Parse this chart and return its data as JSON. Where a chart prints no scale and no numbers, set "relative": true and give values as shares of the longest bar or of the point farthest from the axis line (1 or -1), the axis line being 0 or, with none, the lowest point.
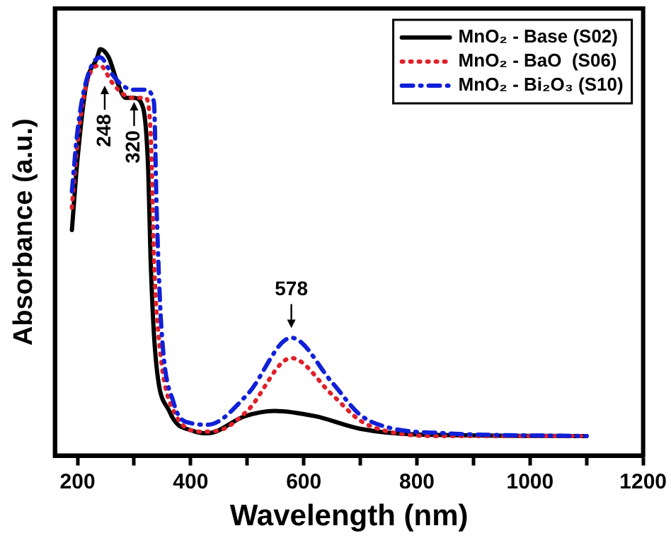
{
  "chart_data": {
    "type": "line",
    "relative": true,
    "xlabel": "Wavelength (nm)",
    "ylabel": "Absorbance (a.u.)",
    "xlim": [
      160,
      1200
    ],
    "xticks": [
      200,
      {
        "value": 300,
        "label": null
      },
      400,
      {
        "value": 500,
        "label": null
      },
      600,
      {
        "value": 700,
        "label": null
      },
      800,
      {
        "value": 900,
        "label": null
      },
      1000,
      {
        "value": 1100,
        "label": null
      },
      1200
    ],
    "legend": "top right",
    "grid": false,
    "marker": "none",
    "tick_labels": "x",
    "series": [
      {
        "name": "MnO₂ - Base (S02)",
        "color": "#000000",
        "line_style": "solid",
        "x": [
          190,
          200,
          215,
          235,
          240,
          255,
          270,
          285,
          300,
          316,
          325,
          329,
          337,
          362,
          406,
          430,
          496,
          548,
          620,
          700,
          800,
          1100
        ],
        "values": [
          0.555,
          0.73,
          0.91,
          0.98,
          1.0,
          0.98,
          0.92,
          0.88,
          0.88,
          0.855,
          0.7,
          0.49,
          0.26,
          0.11,
          0.06,
          0.055,
          0.097,
          0.11,
          0.097,
          0.066,
          0.052,
          0.048
        ]
      },
      {
        "name": "MnO₂ - BaO  (S06)",
        "color": "#e0202a",
        "line_style": "dotted",
        "x": [
          190,
          200,
          215,
          240,
          260,
          280,
          300,
          320,
          330,
          335,
          345,
          370,
          420,
          450,
          500,
          578,
          650,
          700,
          750,
          850,
          1100
        ],
        "values": [
          0.61,
          0.77,
          0.91,
          0.96,
          0.92,
          0.89,
          0.88,
          0.88,
          0.77,
          0.49,
          0.27,
          0.11,
          0.059,
          0.062,
          0.11,
          0.24,
          0.15,
          0.086,
          0.059,
          0.048,
          0.048
        ]
      },
      {
        "name": "MnO₂ - Bi₂O₃ (S10)",
        "color": "#1020d8",
        "line_style": "dashed",
        "x": [
          190,
          200,
          215,
          240,
          260,
          280,
          300,
          320,
          335,
          340,
          348,
          370,
          400,
          430,
          500,
          578,
          650,
          700,
          750,
          850,
          1100
        ],
        "values": [
          0.65,
          0.8,
          0.92,
          0.98,
          0.94,
          0.91,
          0.9,
          0.9,
          0.87,
          0.6,
          0.32,
          0.13,
          0.08,
          0.076,
          0.15,
          0.29,
          0.18,
          0.1,
          0.069,
          0.055,
          0.048
        ]
      }
    ],
    "annotations": [
      {
        "text": "248",
        "x": 248,
        "y": 0.91
      },
      {
        "text": "320",
        "x": 300,
        "y": 0.87
      },
      {
        "text": "578",
        "x": 578,
        "y": 0.31
      }
    ]
  }
}
